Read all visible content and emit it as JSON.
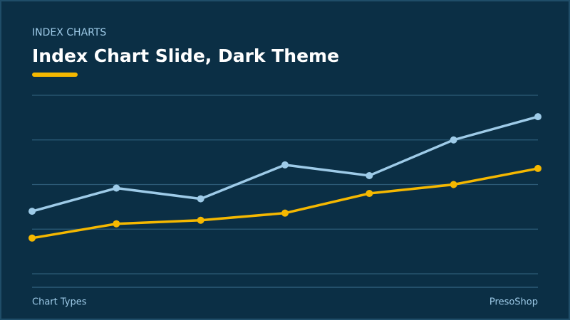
{
  "slide": {
    "kicker": "INDEX CHARTS",
    "footer_left": "Chart Types",
    "footer_right": "PresoShop"
  },
  "chart_data": {
    "type": "line",
    "title": "Index Chart Slide, Dark Theme",
    "categories": [
      null,
      null,
      null,
      null,
      null,
      null,
      null
    ],
    "series": [
      {
        "color": "#9ecbe8",
        "values": [
          35,
          48,
          42,
          61,
          55,
          75,
          88
        ]
      },
      {
        "color": "#f5b800",
        "values": [
          20,
          28,
          30,
          34,
          45,
          50,
          59
        ]
      }
    ],
    "ylim": [
      0,
      100
    ],
    "yticks": [
      0,
      25,
      50,
      75,
      100
    ],
    "grid": true
  }
}
